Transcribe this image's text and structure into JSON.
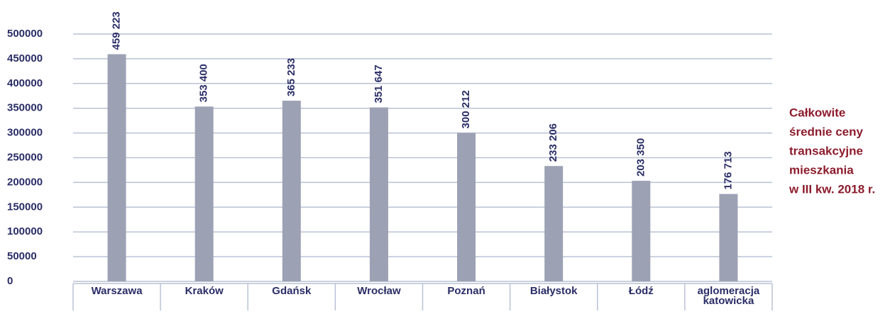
{
  "chart_data": {
    "type": "bar",
    "categories": [
      "Warszawa",
      "Kraków",
      "Gdańsk",
      "Wrocław",
      "Poznań",
      "Białystok",
      "Łódź",
      "aglomeracja katowicka"
    ],
    "values": [
      459223,
      353400,
      365233,
      351647,
      300212,
      233206,
      203350,
      176713
    ],
    "value_labels": [
      "459 223",
      "353 400",
      "365 233",
      "351 647",
      "300 212",
      "233 206",
      "203 350",
      "176 713"
    ],
    "color": "#9da1b4",
    "ylim": [
      0,
      500000
    ],
    "yticks": [
      0,
      50000,
      100000,
      150000,
      200000,
      250000,
      300000,
      350000,
      400000,
      450000,
      500000
    ],
    "grid": true,
    "annotation": [
      "Całkowite",
      "średnie ceny",
      "transakcyjne",
      "mieszkania",
      "w III kw. 2018 r."
    ]
  }
}
